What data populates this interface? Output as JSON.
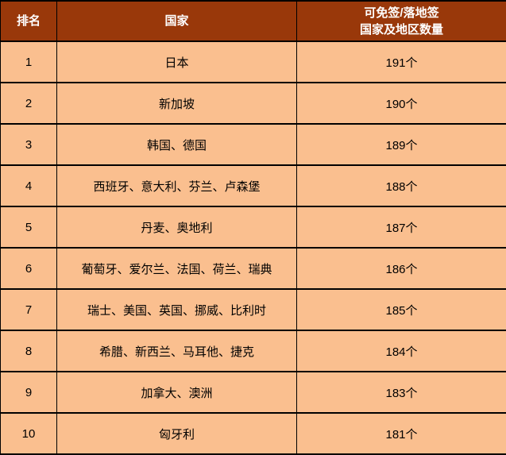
{
  "colors": {
    "header_bg": "#99380a",
    "header_text": "#ffffff",
    "row_bg": "#fabf8f",
    "row_text": "#000000",
    "border": "#000000"
  },
  "header": {
    "rank": "排名",
    "country": "国家",
    "count_line1": "可免签/落地签",
    "count_line2": "国家及地区数量"
  },
  "rows": [
    {
      "rank": "1",
      "countries": "日本",
      "count": "191个"
    },
    {
      "rank": "2",
      "countries": "新加坡",
      "count": "190个"
    },
    {
      "rank": "3",
      "countries": "韩国、德国",
      "count": "189个"
    },
    {
      "rank": "4",
      "countries": "西班牙、意大利、芬兰、卢森堡",
      "count": "188个"
    },
    {
      "rank": "5",
      "countries": "丹麦、奥地利",
      "count": "187个"
    },
    {
      "rank": "6",
      "countries": "葡萄牙、爱尔兰、法国、荷兰、瑞典",
      "count": "186个"
    },
    {
      "rank": "7",
      "countries": "瑞士、美国、英国、挪威、比利时",
      "count": "185个"
    },
    {
      "rank": "8",
      "countries": "希腊、新西兰、马耳他、捷克",
      "count": "184个"
    },
    {
      "rank": "9",
      "countries": "加拿大、澳洲",
      "count": "183个"
    },
    {
      "rank": "10",
      "countries": "匈牙利",
      "count": "181个"
    }
  ],
  "chart_data": {
    "type": "table",
    "columns": [
      "排名",
      "国家",
      "可免签/落地签国家及地区数量"
    ],
    "rows": [
      [
        "1",
        "日本",
        "191个"
      ],
      [
        "2",
        "新加坡",
        "190个"
      ],
      [
        "3",
        "韩国、德国",
        "189个"
      ],
      [
        "4",
        "西班牙、意大利、芬兰、卢森堡",
        "188个"
      ],
      [
        "5",
        "丹麦、奥地利",
        "187个"
      ],
      [
        "6",
        "葡萄牙、爱尔兰、法国、荷兰、瑞典",
        "186个"
      ],
      [
        "7",
        "瑞士、美国、英国、挪威、比利时",
        "185个"
      ],
      [
        "8",
        "希腊、新西兰、马耳他、捷克",
        "184个"
      ],
      [
        "9",
        "加拿大、澳洲",
        "183个"
      ],
      [
        "10",
        "匈牙利",
        "181个"
      ]
    ],
    "counts_numeric": [
      191,
      190,
      189,
      188,
      187,
      186,
      185,
      184,
      183,
      181
    ]
  }
}
